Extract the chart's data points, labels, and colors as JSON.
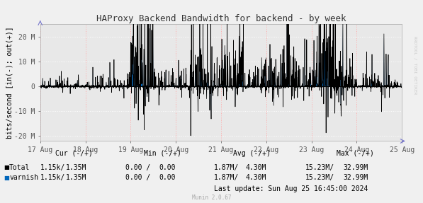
{
  "title": "HAProxy Backend Bandwidth for backend - by week",
  "ylabel": "bits/second [in(-); out(+)]",
  "bg_color": "#f0f0f0",
  "plot_bg_color": "#e8e8e8",
  "grid_color_y": "#ffffff",
  "grid_color_x": "#ffaaaa",
  "x_tick_labels": [
    "17 Aug",
    "18 Aug",
    "19 Aug",
    "20 Aug",
    "21 Aug",
    "22 Aug",
    "23 Aug",
    "24 Aug",
    "25 Aug"
  ],
  "ylim": [
    -22000000,
    25000000
  ],
  "yticks": [
    -20000000,
    -10000000,
    0,
    10000000,
    20000000
  ],
  "ytick_labels": [
    "-20 M",
    "-10 M",
    "0",
    "10 M",
    "20 M"
  ],
  "line_color_total": "#000000",
  "fill_color_varnish": "#0066bb",
  "title_fontsize": 9,
  "axis_fontsize": 7,
  "legend_fontsize": 7,
  "rrdtool_label": "RRDTOOL / TOBI OETIKER",
  "munin_version": "Munin 2.0.67",
  "last_update": "Last update: Sun Aug 25 16:45:00 2024",
  "seed": 123,
  "num_points": 2000,
  "cur_minus": "1.15k/",
  "cur_plus": "1.35M",
  "min_minus": "0.00 /",
  "min_plus": "0.00",
  "avg_minus": "1.87M/",
  "avg_plus": "4.30M",
  "max_minus": "15.23M/",
  "max_plus": "32.99M"
}
